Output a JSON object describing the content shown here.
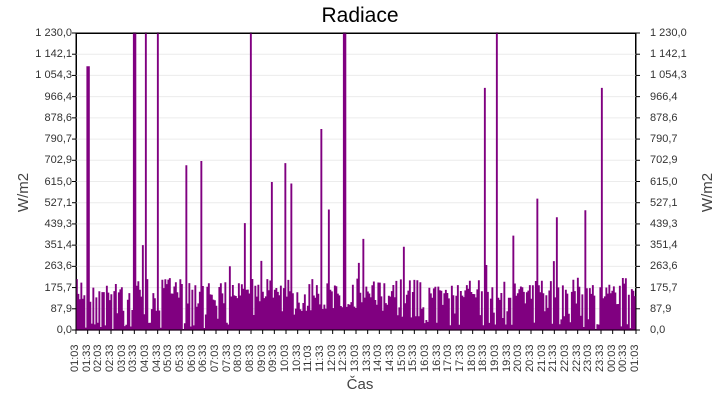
{
  "chart_data": {
    "type": "bar",
    "title": "Radiace",
    "xlabel": "Čas",
    "ylabel": "W/m2",
    "ylabel_right": "W/m2",
    "ylim": [
      0,
      1230.0
    ],
    "grid": true,
    "legend": null,
    "series_color": "#800080",
    "y_ticks": [
      "0,0",
      "87,9",
      "175,7",
      "263,6",
      "351,4",
      "439,3",
      "527,1",
      "615,0",
      "702,9",
      "790,7",
      "878,6",
      "966,4",
      "1 054,3",
      "1 142,1",
      "1 230,0"
    ],
    "x_ticks": [
      "01:03",
      "01:33",
      "02:03",
      "02:33",
      "03:03",
      "03:33",
      "04:03",
      "04:33",
      "05:03",
      "05:33",
      "06:03",
      "06:33",
      "07:03",
      "07:33",
      "08:03",
      "08:33",
      "09:03",
      "09:33",
      "10:03",
      "10:33",
      "11:03",
      "11:33",
      "12:03",
      "12:33",
      "13:03",
      "13:33",
      "14:03",
      "14:33",
      "15:03",
      "15:33",
      "16:03",
      "16:33",
      "17:03",
      "17:33",
      "18:03",
      "18:33",
      "19:03",
      "19:33",
      "20:03",
      "20:33",
      "21:03",
      "21:33",
      "22:03",
      "22:33",
      "23:03",
      "23:33",
      "00:03",
      "00:33",
      "01:03"
    ],
    "notable_peaks": [
      {
        "time": "01:33",
        "value": 1090
      },
      {
        "time": "03:33",
        "value": 1230
      },
      {
        "time": "04:03",
        "value": 1230
      },
      {
        "time": "04:33",
        "value": 1230
      },
      {
        "time": "08:33",
        "value": 1230
      },
      {
        "time": "11:33",
        "value": 830
      },
      {
        "time": "12:33",
        "value": 1230
      },
      {
        "time": "19:03",
        "value": 1230
      },
      {
        "time": "18:33",
        "value": 1000
      },
      {
        "time": "23:33",
        "value": 1000
      }
    ],
    "baseline_description": "Smooth daylight baseline rising from ~0 at 08:30 to ~90 around 12:30-13:30 and back to ~0 by 16:30; dense spikes mostly in 0-215 range throughout"
  }
}
